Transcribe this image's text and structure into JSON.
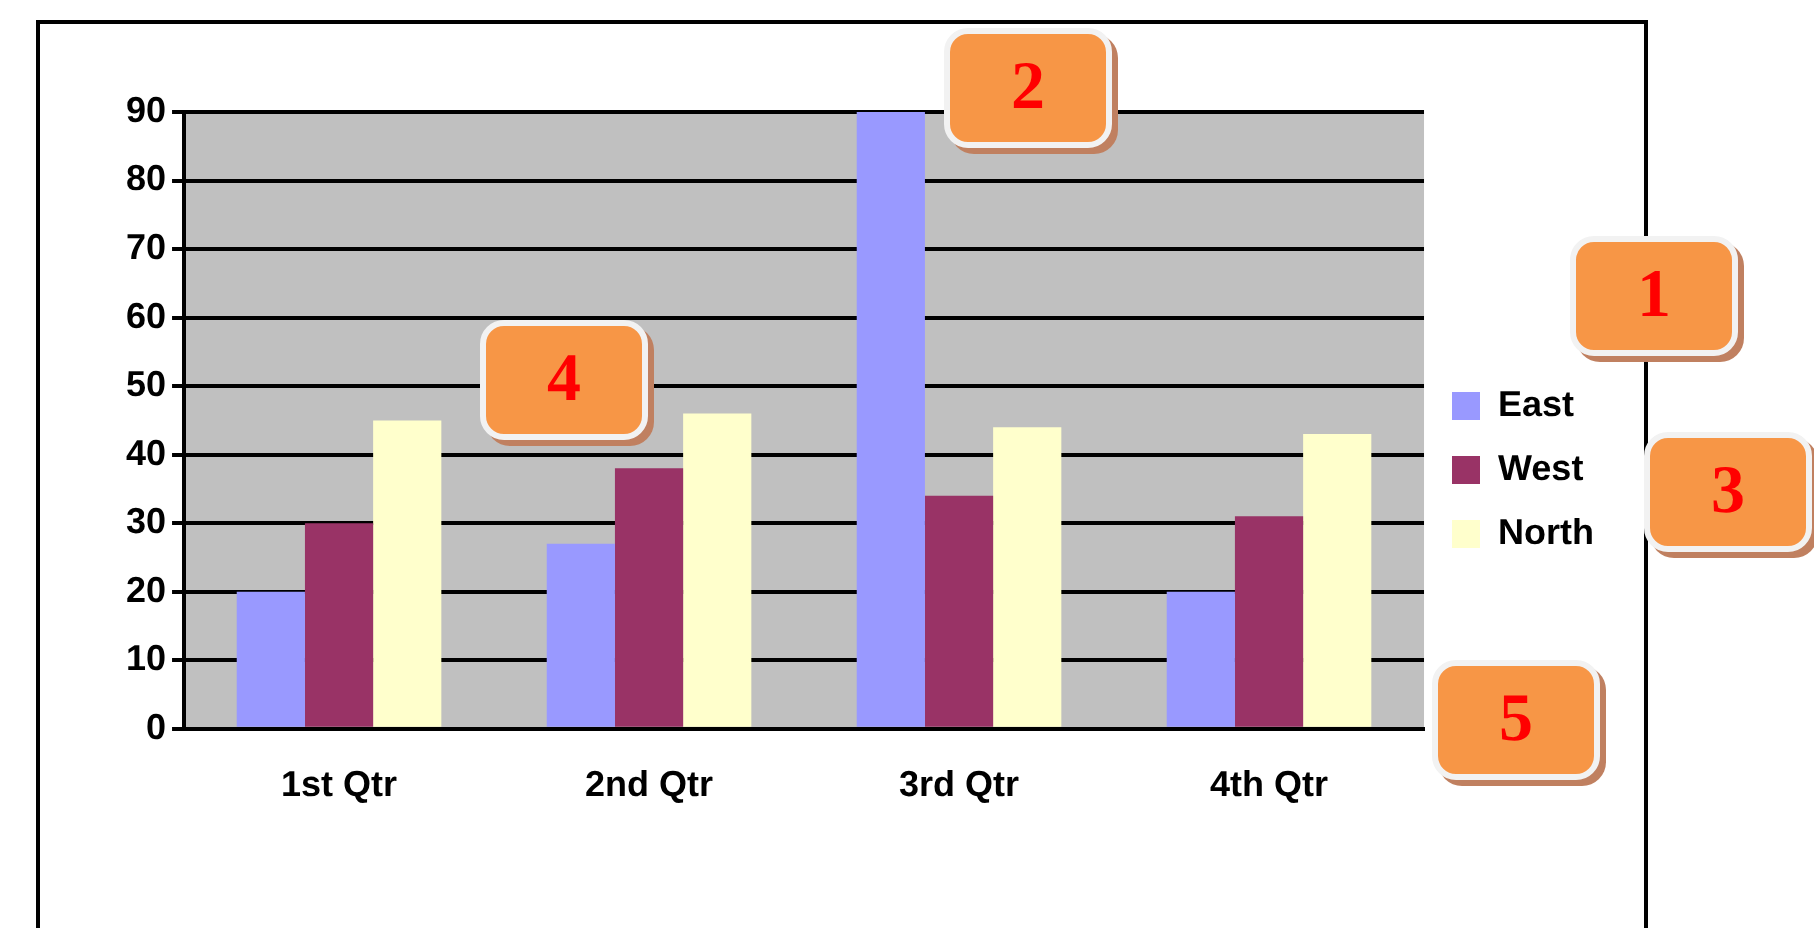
{
  "chart_data": {
    "type": "bar",
    "categories": [
      "1st Qtr",
      "2nd Qtr",
      "3rd Qtr",
      "4th Qtr"
    ],
    "series": [
      {
        "name": "East",
        "color": "#9999ff",
        "values": [
          20,
          27,
          90,
          20
        ]
      },
      {
        "name": "West",
        "color": "#993366",
        "values": [
          30,
          38,
          34,
          31
        ]
      },
      {
        "name": "North",
        "color": "#ffffcc",
        "values": [
          45,
          46,
          44,
          43
        ]
      }
    ],
    "ylim": [
      0,
      90
    ],
    "yticks": [
      0,
      10,
      20,
      30,
      40,
      50,
      60,
      70,
      80,
      90
    ],
    "grid": "y",
    "legend": "right",
    "annotations": [
      "1",
      "2",
      "3",
      "4",
      "5"
    ]
  }
}
